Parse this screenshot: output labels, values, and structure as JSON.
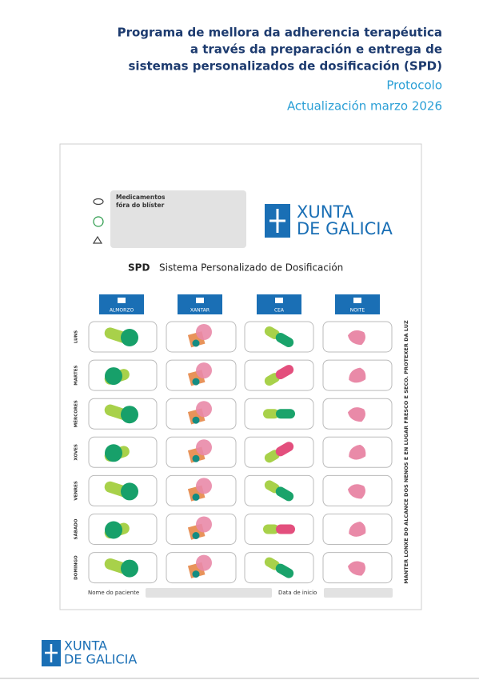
{
  "header": {
    "title_lines": [
      "Programa de mellora da adherencia terapéutica",
      "a través da preparación e entrega de",
      "sistemas personalizados de dosificación (SPD)"
    ],
    "subtitle": "Protocolo",
    "update": "Actualización marzo 2026"
  },
  "card": {
    "outside_blister": [
      "Medicamentos",
      "fóra do blíster"
    ],
    "logo": [
      "XUNTA",
      "DE GALICIA"
    ],
    "spd": "SPD",
    "spd_name": "Sistema Personalizado de Dosificación",
    "meals": [
      "ALMORZO",
      "XANTAR",
      "CEA",
      "NOITE"
    ],
    "days": [
      "LUNS",
      "MARTES",
      "MÉRCORES",
      "XOVES",
      "VENRES",
      "SÁBADO",
      "DOMINGO"
    ],
    "warning": "MANTER LONXE DO ALCANCE DOS NENOS E EN LUGAR FRESCO E SECO. PROTEXER DA LUZ",
    "patient_label": "Nome do paciente",
    "start_label": "Data de inicio"
  },
  "footer": {
    "logo": [
      "XUNTA",
      "DE GALICIA"
    ]
  }
}
